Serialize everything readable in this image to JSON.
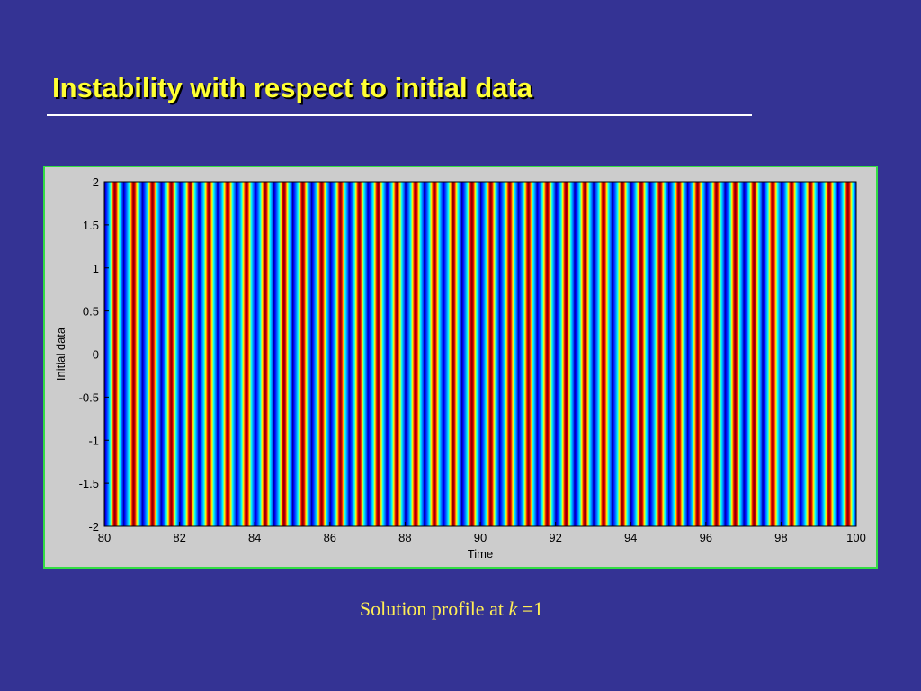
{
  "slide": {
    "title": "Instability with respect to initial data",
    "caption_prefix": "Solution profile at ",
    "caption_variable": "k",
    "caption_suffix": " =1"
  },
  "colors": {
    "background": "#343394",
    "title": "#ffff33",
    "frame_border": "#33dd44",
    "plot_panel": "#cccccc",
    "caption": "#ffee55"
  },
  "chart_data": {
    "type": "heatmap",
    "title": "",
    "xlabel": "Time",
    "ylabel": "Initial data",
    "xlim": [
      80,
      100
    ],
    "ylim": [
      -2,
      2
    ],
    "xticks": [
      80,
      82,
      84,
      86,
      88,
      90,
      92,
      94,
      96,
      98,
      100
    ],
    "xtick_labels": [
      "80",
      "82",
      "84",
      "86",
      "88",
      "90",
      "92",
      "94",
      "96",
      "98",
      "100"
    ],
    "yticks": [
      2,
      1.5,
      1,
      0.5,
      0,
      -0.5,
      -1,
      -1.5,
      -2
    ],
    "ytick_labels": [
      "2",
      "1.5",
      "1",
      "0.5",
      "0",
      "-0.5",
      "-1",
      "-1.5",
      "-2"
    ],
    "colormap": "jet",
    "pattern": "vertical stripes, independent of initial data",
    "period": 0.5,
    "red_band_centers": [
      80.25,
      80.75,
      81.25,
      81.75,
      82.25,
      82.75,
      83.25,
      83.75,
      84.25,
      84.75,
      85.25,
      85.75,
      86.25,
      86.75,
      87.25,
      87.75,
      88.25,
      88.75,
      89.25,
      89.75,
      90.25,
      90.75,
      91.25,
      91.75,
      92.25,
      92.75,
      93.25,
      93.75,
      94.25,
      94.75,
      95.25,
      95.75,
      96.25,
      96.75,
      97.25,
      97.75,
      98.25,
      98.75,
      99.25,
      99.75
    ],
    "grid": false,
    "legend": "none"
  }
}
